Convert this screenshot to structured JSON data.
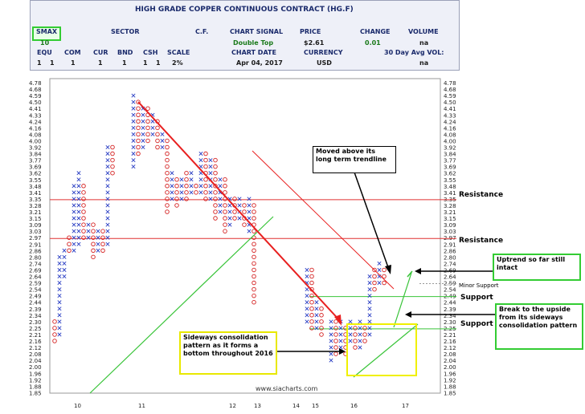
{
  "header": {
    "title": "HIGH GRADE COPPER CONTINUOUS CONTRACT (HG.F)",
    "smax_label": "SMAX",
    "smax_value": "10",
    "sector_label": "SECTOR",
    "cf_label": "C.F.",
    "chart_signal_label": "CHART SIGNAL",
    "chart_signal_value": "Double Top",
    "price_label": "PRICE",
    "price_value": "$2.61",
    "change_label": "CHANGE",
    "change_value": "0.01",
    "volume_label": "VOLUME",
    "volume_value": "na",
    "cols": [
      "EQU",
      "COM",
      "CUR",
      "BND",
      "CSH",
      "SCALE"
    ],
    "col_values": [
      "1",
      "1",
      "1",
      "1",
      "1",
      "1",
      "1",
      "2%"
    ],
    "chart_date_label": "CHART DATE",
    "chart_date_value": "Apr 04, 2017",
    "currency_label": "CURRENCY",
    "currency_value": "USD",
    "avg_vol_label": "30 Day Avg VOL:",
    "avg_vol_value": "na"
  },
  "annotations": {
    "moved_above": "Moved above its long term trendline",
    "uptrend": "Uptrend so far still intact",
    "breakout": "Break to the upside from its sideways consolidation pattern",
    "sideways": "Sideways consolidation pattern as it forms a bottom throughout 2016",
    "resistance_upper": "Resistance",
    "resistance_lower": "Resistance",
    "minor_support": "Minor Support",
    "support_upper": "Support",
    "support_lower": "Support",
    "watermark": "www.siacharts.com"
  },
  "colors": {
    "x_mark": "#2b3fc4",
    "o_mark": "#d42020",
    "resistance": "#e03030",
    "support": "#39c439",
    "downtrend": "#e82020",
    "callout_green": "#33cc33",
    "callout_yellow": "#f0f000"
  },
  "chart_data": {
    "type": "point-and-figure",
    "y_ticks": [
      4.78,
      4.68,
      4.59,
      4.5,
      4.41,
      4.33,
      4.24,
      4.16,
      4.08,
      4.0,
      3.92,
      3.84,
      3.77,
      3.69,
      3.62,
      3.55,
      3.48,
      3.41,
      3.35,
      3.28,
      3.21,
      3.15,
      3.09,
      3.03,
      2.97,
      2.91,
      2.86,
      2.8,
      2.74,
      2.69,
      2.64,
      2.59,
      2.54,
      2.49,
      2.44,
      2.39,
      2.34,
      2.3,
      2.25,
      2.21,
      2.16,
      2.12,
      2.08,
      2.04,
      2.0,
      1.96,
      1.92,
      1.88,
      1.85
    ],
    "x_labels": [
      "10",
      "11",
      "12",
      "13",
      "14",
      "15",
      "16",
      "17"
    ],
    "resistance_levels": [
      3.35,
      2.97
    ],
    "support_levels": [
      2.49,
      2.25
    ],
    "minor_support": 2.59,
    "last_price": 2.61,
    "columns": [
      {
        "type": "O",
        "top": 2.3,
        "bottom": 2.16
      },
      {
        "type": "X",
        "top": 2.8,
        "bottom": 2.21
      },
      {
        "type": "X",
        "top": 2.86,
        "bottom": 2.64
      },
      {
        "type": "O",
        "top": 2.97,
        "bottom": 2.86
      },
      {
        "type": "X",
        "top": 3.48,
        "bottom": 2.86
      },
      {
        "type": "X",
        "top": 3.62,
        "bottom": 2.91
      },
      {
        "type": "O",
        "top": 3.48,
        "bottom": 2.97
      },
      {
        "type": "X",
        "top": 3.09,
        "bottom": 2.97
      },
      {
        "type": "O",
        "top": 3.09,
        "bottom": 2.8
      },
      {
        "type": "X",
        "top": 3.03,
        "bottom": 2.86
      },
      {
        "type": "O",
        "top": 3.03,
        "bottom": 2.86
      },
      {
        "type": "X",
        "top": 3.92,
        "bottom": 2.91
      },
      {
        "type": "O",
        "top": 3.92,
        "bottom": 3.62
      },
      {
        "type": "X",
        "top": 4.59,
        "bottom": 3.69
      },
      {
        "type": "O",
        "top": 4.5,
        "bottom": 3.84
      },
      {
        "type": "X",
        "top": 4.41,
        "bottom": 3.92
      },
      {
        "type": "O",
        "top": 4.41,
        "bottom": 4.0
      },
      {
        "type": "X",
        "top": 4.33,
        "bottom": 4.08
      },
      {
        "type": "O",
        "top": 4.24,
        "bottom": 3.92
      },
      {
        "type": "X",
        "top": 4.08,
        "bottom": 3.92
      },
      {
        "type": "O",
        "top": 4.0,
        "bottom": 3.21
      },
      {
        "type": "X",
        "top": 3.62,
        "bottom": 3.35
      },
      {
        "type": "O",
        "top": 3.55,
        "bottom": 3.28
      },
      {
        "type": "X",
        "top": 3.55,
        "bottom": 3.35
      },
      {
        "type": "O",
        "top": 3.62,
        "bottom": 3.35
      },
      {
        "type": "X",
        "top": 3.62,
        "bottom": 3.41
      },
      {
        "type": "O",
        "top": 3.48,
        "bottom": 3.41
      },
      {
        "type": "X",
        "top": 3.84,
        "bottom": 3.41
      },
      {
        "type": "O",
        "top": 3.84,
        "bottom": 3.35
      },
      {
        "type": "X",
        "top": 3.77,
        "bottom": 3.35
      },
      {
        "type": "O",
        "top": 3.77,
        "bottom": 3.15
      },
      {
        "type": "X",
        "top": 3.55,
        "bottom": 3.21
      },
      {
        "type": "O",
        "top": 3.55,
        "bottom": 3.03
      },
      {
        "type": "X",
        "top": 3.35,
        "bottom": 3.09
      },
      {
        "type": "O",
        "top": 3.35,
        "bottom": 3.15
      },
      {
        "type": "X",
        "top": 3.35,
        "bottom": 3.15
      },
      {
        "type": "O",
        "top": 3.28,
        "bottom": 3.09
      },
      {
        "type": "X",
        "top": 3.35,
        "bottom": 3.03
      },
      {
        "type": "O",
        "top": 3.28,
        "bottom": 2.44
      },
      {
        "type": "X",
        "top": 2.69,
        "bottom": 2.3
      },
      {
        "type": "O",
        "top": 2.69,
        "bottom": 2.25
      },
      {
        "type": "X",
        "top": 2.44,
        "bottom": 2.25
      },
      {
        "type": "O",
        "top": 2.39,
        "bottom": 2.21
      },
      {
        "type": "X",
        "top": 2.3,
        "bottom": 2.04
      },
      {
        "type": "O",
        "top": 2.3,
        "bottom": 2.08
      },
      {
        "type": "X",
        "top": 2.3,
        "bottom": 2.12
      },
      {
        "type": "O",
        "top": 2.25,
        "bottom": 2.08
      },
      {
        "type": "X",
        "top": 2.3,
        "bottom": 2.16
      },
      {
        "type": "O",
        "top": 2.25,
        "bottom": 2.12
      },
      {
        "type": "X",
        "top": 2.3,
        "bottom": 2.12
      },
      {
        "type": "O",
        "top": 2.25,
        "bottom": 2.16
      },
      {
        "type": "X",
        "top": 2.64,
        "bottom": 2.21
      },
      {
        "type": "O",
        "top": 2.69,
        "bottom": 2.54
      },
      {
        "type": "X",
        "top": 2.74,
        "bottom": 2.59
      },
      {
        "type": "O",
        "top": 2.69,
        "bottom": 2.59
      }
    ]
  }
}
